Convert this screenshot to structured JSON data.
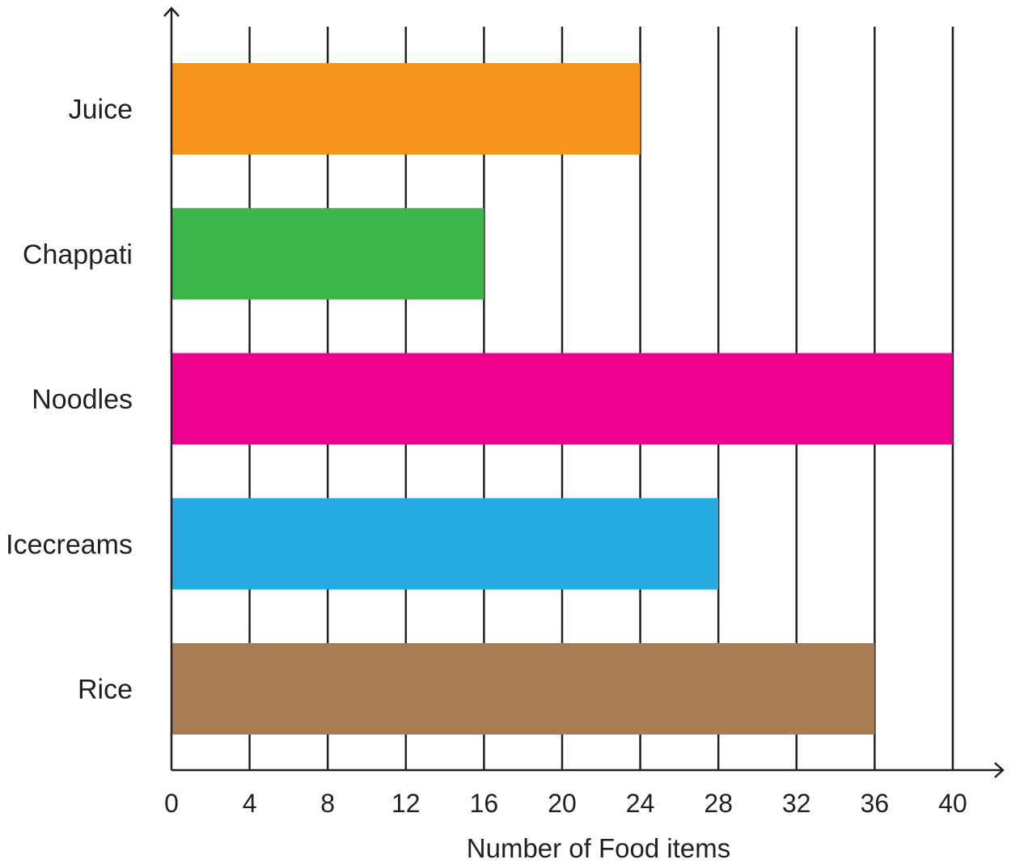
{
  "chart_data": {
    "type": "bar",
    "orientation": "horizontal",
    "categories": [
      "Juice",
      "Chappati",
      "Noodles",
      "Icecreams",
      "Rice"
    ],
    "values": [
      24,
      16,
      40,
      28,
      36
    ],
    "colors": [
      "#f7941d",
      "#3cb54a",
      "#ec008c",
      "#27aae1",
      "#a97c53"
    ],
    "title": "",
    "xlabel": "Number of Food items",
    "ylabel": "",
    "xlim": [
      0,
      40
    ],
    "x_ticks": [
      "0",
      "4",
      "8",
      "12",
      "16",
      "20",
      "24",
      "28",
      "32",
      "36",
      "40"
    ],
    "grid": "vertical lines",
    "legend": "none"
  }
}
